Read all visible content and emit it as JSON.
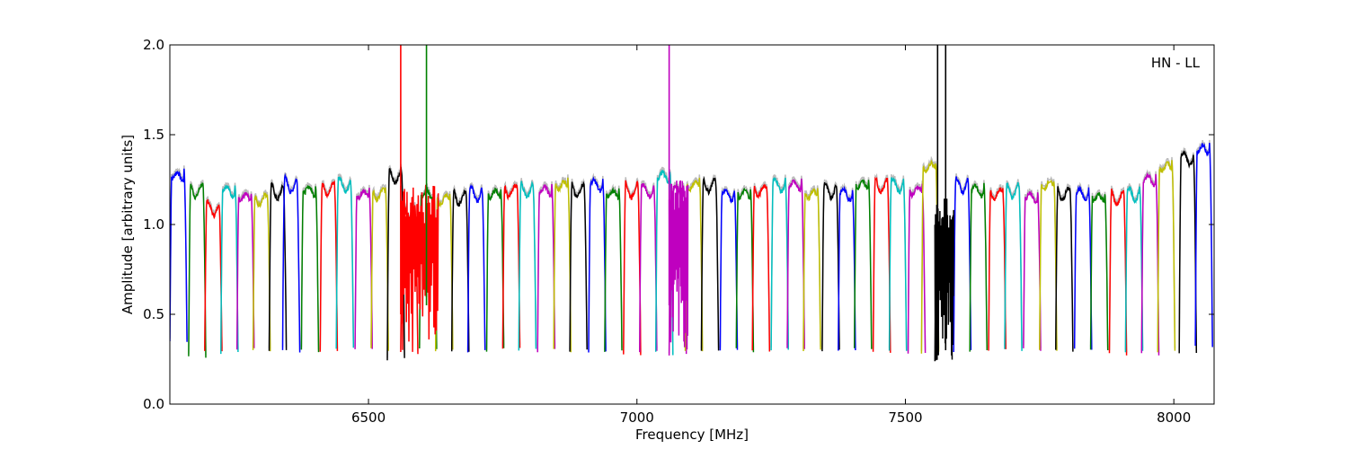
{
  "chart_data": {
    "type": "line",
    "title": "",
    "xlabel": "Frequency [MHz]",
    "ylabel": "Amplitude [arbitrary units]",
    "xlim": [
      6130,
      8075
    ],
    "ylim": [
      0.0,
      2.0
    ],
    "xticks": [
      6500,
      7000,
      7500,
      8000
    ],
    "yticks": [
      0.0,
      0.5,
      1.0,
      1.5,
      2.0
    ],
    "ytick_labels": [
      "0.0",
      "0.5",
      "1.0",
      "1.5",
      "2.0"
    ],
    "annotation": "HN - LL",
    "annotation_position": "top-right",
    "grid": false,
    "legend": "none",
    "background_trace_color": "#bbbbbb",
    "channel_width_mhz": 32,
    "channel_colors": [
      "#0000ff",
      "#008000",
      "#ff0000",
      "#00bfbf",
      "#bf00bf",
      "#bfbf00",
      "#000000"
    ],
    "channels": [
      {
        "start": 6130,
        "level": 1.3,
        "edge": 0.35,
        "color": "#0000ff"
      },
      {
        "start": 6165,
        "level": 1.22,
        "edge": 0.27,
        "color": "#008000"
      },
      {
        "start": 6195,
        "level": 1.12,
        "edge": 0.3,
        "color": "#ff0000"
      },
      {
        "start": 6225,
        "level": 1.22,
        "edge": 0.28,
        "color": "#00bfbf"
      },
      {
        "start": 6255,
        "level": 1.18,
        "edge": 0.3,
        "color": "#bf00bf"
      },
      {
        "start": 6285,
        "level": 1.17,
        "edge": 0.3,
        "color": "#bfbf00"
      },
      {
        "start": 6315,
        "level": 1.21,
        "edge": 0.3,
        "color": "#000000"
      },
      {
        "start": 6340,
        "level": 1.25,
        "edge": 0.3,
        "color": "#0000ff"
      },
      {
        "start": 6375,
        "level": 1.22,
        "edge": 0.3,
        "color": "#008000"
      },
      {
        "start": 6410,
        "level": 1.23,
        "edge": 0.3,
        "color": "#ff0000"
      },
      {
        "start": 6440,
        "level": 1.25,
        "edge": 0.32,
        "color": "#00bfbf"
      },
      {
        "start": 6475,
        "level": 1.2,
        "edge": 0.3,
        "color": "#bf00bf"
      },
      {
        "start": 6505,
        "level": 1.2,
        "edge": 0.3,
        "color": "#bfbf00"
      },
      {
        "start": 6535,
        "level": 1.3,
        "edge": 0.25,
        "color": "#000000"
      },
      {
        "start": 6560,
        "level": 1.1,
        "edge": 0.28,
        "color": "#ff0000"
      },
      {
        "start": 6595,
        "level": 1.2,
        "edge": 0.3,
        "color": "#008000"
      },
      {
        "start": 6625,
        "level": 1.17,
        "edge": 0.3,
        "color": "#bfbf00"
      },
      {
        "start": 6655,
        "level": 1.18,
        "edge": 0.3,
        "color": "#000000"
      },
      {
        "start": 6685,
        "level": 1.2,
        "edge": 0.3,
        "color": "#0000ff"
      },
      {
        "start": 6720,
        "level": 1.2,
        "edge": 0.3,
        "color": "#008000"
      },
      {
        "start": 6750,
        "level": 1.22,
        "edge": 0.3,
        "color": "#ff0000"
      },
      {
        "start": 6780,
        "level": 1.22,
        "edge": 0.3,
        "color": "#00bfbf"
      },
      {
        "start": 6815,
        "level": 1.22,
        "edge": 0.3,
        "color": "#bf00bf"
      },
      {
        "start": 6845,
        "level": 1.25,
        "edge": 0.3,
        "color": "#bfbf00"
      },
      {
        "start": 6875,
        "level": 1.22,
        "edge": 0.3,
        "color": "#000000"
      },
      {
        "start": 6910,
        "level": 1.25,
        "edge": 0.3,
        "color": "#0000ff"
      },
      {
        "start": 6940,
        "level": 1.2,
        "edge": 0.3,
        "color": "#008000"
      },
      {
        "start": 6975,
        "level": 1.22,
        "edge": 0.28,
        "color": "#ff0000"
      },
      {
        "start": 7005,
        "level": 1.22,
        "edge": 0.3,
        "color": "#bf00bf"
      },
      {
        "start": 7035,
        "level": 1.3,
        "edge": 0.28,
        "color": "#00bfbf"
      },
      {
        "start": 7060,
        "level": 1.22,
        "edge": 0.28,
        "color": "#bf00bf"
      },
      {
        "start": 7090,
        "level": 1.25,
        "edge": 0.3,
        "color": "#bfbf00"
      },
      {
        "start": 7120,
        "level": 1.25,
        "edge": 0.3,
        "color": "#000000"
      },
      {
        "start": 7155,
        "level": 1.2,
        "edge": 0.3,
        "color": "#0000ff"
      },
      {
        "start": 7185,
        "level": 1.2,
        "edge": 0.3,
        "color": "#008000"
      },
      {
        "start": 7215,
        "level": 1.22,
        "edge": 0.3,
        "color": "#ff0000"
      },
      {
        "start": 7250,
        "level": 1.25,
        "edge": 0.3,
        "color": "#00bfbf"
      },
      {
        "start": 7280,
        "level": 1.25,
        "edge": 0.3,
        "color": "#bf00bf"
      },
      {
        "start": 7310,
        "level": 1.2,
        "edge": 0.3,
        "color": "#bfbf00"
      },
      {
        "start": 7345,
        "level": 1.22,
        "edge": 0.3,
        "color": "#000000"
      },
      {
        "start": 7375,
        "level": 1.2,
        "edge": 0.3,
        "color": "#0000ff"
      },
      {
        "start": 7405,
        "level": 1.25,
        "edge": 0.3,
        "color": "#008000"
      },
      {
        "start": 7440,
        "level": 1.25,
        "edge": 0.28,
        "color": "#ff0000"
      },
      {
        "start": 7470,
        "level": 1.25,
        "edge": 0.3,
        "color": "#00bfbf"
      },
      {
        "start": 7505,
        "level": 1.22,
        "edge": 0.28,
        "color": "#bf00bf"
      },
      {
        "start": 7530,
        "level": 1.35,
        "edge": 0.28,
        "color": "#bfbf00"
      },
      {
        "start": 7555,
        "level": 0.95,
        "edge": 0.25,
        "color": "#000000"
      },
      {
        "start": 7590,
        "level": 1.25,
        "edge": 0.3,
        "color": "#0000ff"
      },
      {
        "start": 7620,
        "level": 1.22,
        "edge": 0.3,
        "color": "#008000"
      },
      {
        "start": 7655,
        "level": 1.2,
        "edge": 0.3,
        "color": "#ff0000"
      },
      {
        "start": 7685,
        "level": 1.22,
        "edge": 0.3,
        "color": "#00bfbf"
      },
      {
        "start": 7720,
        "level": 1.18,
        "edge": 0.3,
        "color": "#bf00bf"
      },
      {
        "start": 7750,
        "level": 1.25,
        "edge": 0.3,
        "color": "#bfbf00"
      },
      {
        "start": 7780,
        "level": 1.2,
        "edge": 0.3,
        "color": "#000000"
      },
      {
        "start": 7815,
        "level": 1.2,
        "edge": 0.3,
        "color": "#0000ff"
      },
      {
        "start": 7845,
        "level": 1.18,
        "edge": 0.3,
        "color": "#008000"
      },
      {
        "start": 7880,
        "level": 1.18,
        "edge": 0.28,
        "color": "#ff0000"
      },
      {
        "start": 7910,
        "level": 1.2,
        "edge": 0.3,
        "color": "#00bfbf"
      },
      {
        "start": 7940,
        "level": 1.28,
        "edge": 0.28,
        "color": "#bf00bf"
      },
      {
        "start": 7970,
        "level": 1.35,
        "edge": 0.3,
        "color": "#bfbf00"
      },
      {
        "start": 8010,
        "level": 1.4,
        "edge": 0.28,
        "color": "#000000"
      },
      {
        "start": 8040,
        "level": 1.45,
        "edge": 0.32,
        "color": "#0000ff"
      }
    ],
    "spikes": [
      {
        "x": 6560,
        "y_low": 0.5,
        "y_high": 2.0,
        "color": "#ff0000"
      },
      {
        "x": 6608,
        "y_low": 0.55,
        "y_high": 2.0,
        "color": "#008000"
      },
      {
        "x": 7060,
        "y_low": 0.55,
        "y_high": 2.0,
        "color": "#bf00bf"
      },
      {
        "x": 7560,
        "y_low": 0.3,
        "y_high": 2.0,
        "color": "#000000"
      },
      {
        "x": 7575,
        "y_low": 0.3,
        "y_high": 2.0,
        "color": "#000000"
      }
    ],
    "noisy_regions": [
      {
        "x_start": 6560,
        "x_end": 6630,
        "y_low": 0.25,
        "y_high": 1.25
      },
      {
        "x_start": 7060,
        "x_end": 7095,
        "y_low": 0.3,
        "y_high": 1.25
      },
      {
        "x_start": 7555,
        "x_end": 7590,
        "y_low": 0.22,
        "y_high": 1.15
      }
    ]
  }
}
